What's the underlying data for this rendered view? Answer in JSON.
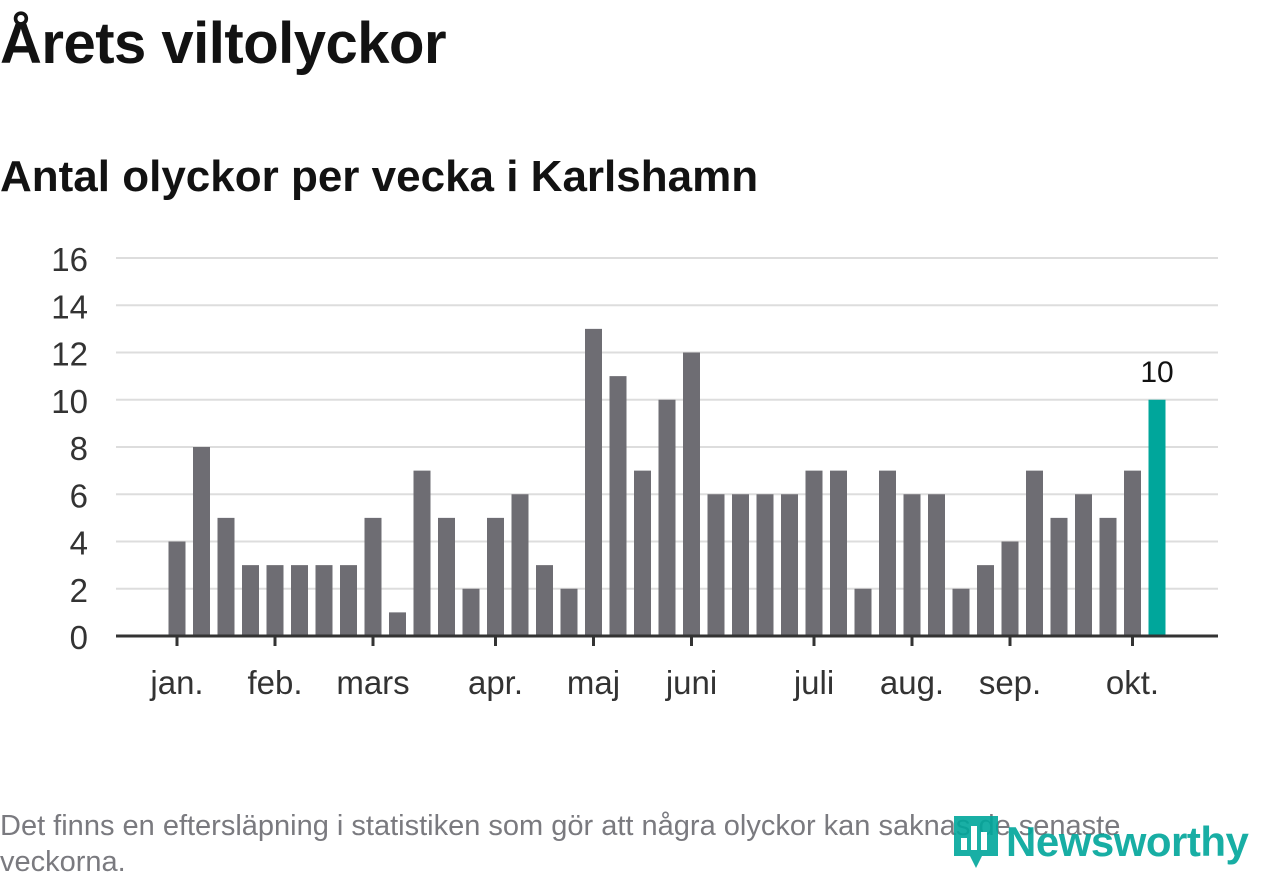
{
  "header": {
    "title": "Årets viltolyckor",
    "subtitle": "Antal olyckor per vecka i Karlshamn"
  },
  "footnote": "Det finns en eftersläpning i statistiken som gör att några olyckor kan saknas de senaste veckorna.",
  "brand": {
    "name": "Newsworthy",
    "color": "#00a69b"
  },
  "chart_data": {
    "type": "bar",
    "title": "Antal olyckor per vecka i Karlshamn",
    "xlabel": "",
    "ylabel": "",
    "ylim": [
      0,
      16
    ],
    "y_ticks": [
      0,
      2,
      4,
      6,
      8,
      10,
      12,
      14,
      16
    ],
    "grid": true,
    "bar_color": "#6e6d73",
    "highlight_color": "#00a69b",
    "axis_color": "#333333",
    "grid_color": "#dddddd",
    "values": [
      4,
      8,
      5,
      3,
      3,
      3,
      3,
      3,
      5,
      1,
      7,
      5,
      2,
      5,
      6,
      3,
      2,
      13,
      11,
      7,
      10,
      12,
      6,
      6,
      6,
      6,
      7,
      7,
      2,
      7,
      6,
      6,
      2,
      3,
      4,
      7,
      5,
      6,
      5,
      7,
      10
    ],
    "highlight_index": 40,
    "highlight_label": "10",
    "month_labels": [
      {
        "label": "jan.",
        "bar_index": 0
      },
      {
        "label": "feb.",
        "bar_index": 4
      },
      {
        "label": "mars",
        "bar_index": 8
      },
      {
        "label": "apr.",
        "bar_index": 13
      },
      {
        "label": "maj",
        "bar_index": 17
      },
      {
        "label": "juni",
        "bar_index": 21
      },
      {
        "label": "juli",
        "bar_index": 26
      },
      {
        "label": "aug.",
        "bar_index": 30
      },
      {
        "label": "sep.",
        "bar_index": 34
      },
      {
        "label": "okt.",
        "bar_index": 39
      }
    ]
  }
}
